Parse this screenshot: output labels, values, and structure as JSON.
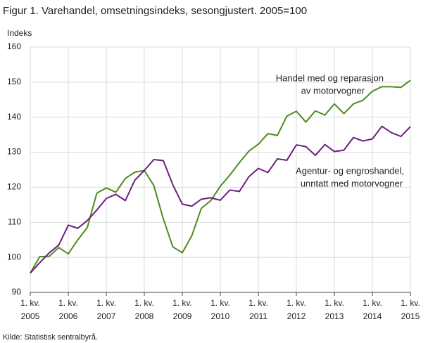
{
  "chart_data": {
    "type": "line",
    "title": "Figur 1. Varehandel, omsetningsindeks, sesongjustert. 2005=100",
    "y_label": "Indeks",
    "source": "Kilde: Statistisk sentralbyrå.",
    "categories": [
      [
        "1. kv.",
        "2005"
      ],
      null,
      null,
      null,
      [
        "1. kv.",
        "2006"
      ],
      null,
      null,
      null,
      [
        "1. kv.",
        "2007"
      ],
      null,
      null,
      null,
      [
        "1. kv.",
        "2008"
      ],
      null,
      null,
      null,
      [
        "1. kv.",
        "2009"
      ],
      null,
      null,
      null,
      [
        "1. kv.",
        "2010"
      ],
      null,
      null,
      null,
      [
        "1. kv.",
        "2011"
      ],
      null,
      null,
      null,
      [
        "1. kv.",
        "2012"
      ],
      null,
      null,
      null,
      [
        "1. kv.",
        "2013"
      ],
      null,
      null,
      null,
      [
        "1. kv.",
        "2014"
      ],
      null,
      null,
      null,
      [
        "1. kv.",
        "2015"
      ]
    ],
    "series": [
      {
        "name": [
          "Handel med og reparasjon",
          "av motorvogner"
        ],
        "color": "#4e8c1e",
        "values": [
          95.5,
          100.2,
          100.3,
          102.8,
          101.0,
          105.0,
          108.5,
          118.3,
          119.8,
          118.6,
          122.5,
          124.3,
          124.8,
          120.5,
          111.0,
          103.0,
          101.3,
          106.2,
          114.0,
          116.2,
          120.3,
          123.5,
          127.0,
          130.3,
          132.3,
          135.3,
          134.8,
          140.3,
          141.7,
          138.6,
          141.8,
          140.6,
          143.8,
          141.0,
          143.8,
          144.8,
          147.4,
          148.7,
          148.7,
          148.5,
          150.5
        ]
      },
      {
        "name": [
          "Agentur- og engroshandel,",
          "unntatt med motorvogner"
        ],
        "color": "#6b1f7c",
        "values": [
          95.5,
          98.5,
          101.3,
          103.5,
          109.2,
          108.3,
          110.5,
          113.5,
          116.8,
          118.0,
          116.2,
          122.0,
          124.8,
          127.9,
          127.6,
          120.7,
          115.2,
          114.6,
          116.6,
          117.0,
          116.3,
          119.2,
          118.8,
          123.0,
          125.4,
          124.2,
          128.1,
          127.7,
          132.1,
          131.6,
          129.1,
          132.2,
          130.2,
          130.6,
          134.2,
          133.2,
          133.8,
          137.4,
          135.6,
          134.5,
          137.3
        ]
      }
    ],
    "ylim": [
      90,
      160
    ],
    "yticks": [
      90,
      100,
      110,
      120,
      130,
      140,
      150,
      160
    ],
    "grid": true
  }
}
